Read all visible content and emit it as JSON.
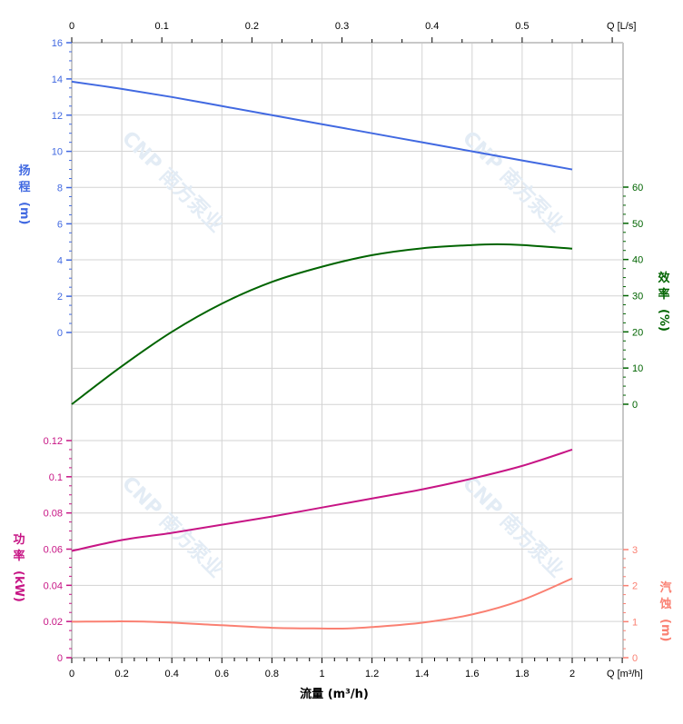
{
  "chart_data": {
    "type": "line",
    "title": "",
    "xlabel": "流量 (m³/h)",
    "x_unit_bottom": "Q [m³/h]",
    "x_unit_top": "Q [L/s]",
    "xlim": [
      0,
      2.206
    ],
    "x_ticks": [
      0,
      0.2,
      0.4,
      0.6,
      0.8,
      1,
      1.2,
      1.4,
      1.6,
      1.8,
      2
    ],
    "x_top_ticks": [
      0,
      0.1,
      0.2,
      0.3,
      0.4,
      0.5
    ],
    "grid": true,
    "axes": {
      "head": {
        "label": [
          "扬",
          "程",
          "(m)"
        ],
        "ticks": [
          0,
          2,
          4,
          6,
          8,
          10,
          12,
          14,
          16
        ],
        "color": "#4169e1"
      },
      "power": {
        "label": [
          "功",
          "率",
          "(kW)"
        ],
        "ticks": [
          0,
          0.02,
          0.04,
          0.06,
          0.08,
          0.1,
          0.12
        ],
        "color": "#c71585"
      },
      "efficiency": {
        "label": [
          "效",
          "率",
          "(%)"
        ],
        "ticks": [
          0,
          10,
          20,
          30,
          40,
          50,
          60
        ],
        "color": "#006400"
      },
      "npsh": {
        "label": [
          "汽",
          "蚀",
          "(m)"
        ],
        "ticks": [
          0,
          1,
          2,
          3
        ],
        "color": "#fa8072"
      }
    },
    "series": [
      {
        "axis": "head",
        "color": "#4169e1",
        "x": [
          0,
          0.2,
          0.4,
          0.6,
          0.8,
          1.0,
          1.2,
          1.4,
          1.6,
          1.8,
          2.0
        ],
        "y": [
          13.85,
          13.45,
          13.0,
          12.5,
          12.0,
          11.5,
          11.0,
          10.5,
          10.0,
          9.5,
          9.0
        ]
      },
      {
        "axis": "efficiency",
        "color": "#006400",
        "x": [
          0,
          0.2,
          0.4,
          0.6,
          0.8,
          1.0,
          1.2,
          1.4,
          1.6,
          1.7,
          1.8,
          2.0
        ],
        "y": [
          0,
          10.5,
          20,
          27.8,
          33.8,
          38,
          41.2,
          43.1,
          44,
          44.2,
          44,
          43
        ]
      },
      {
        "axis": "power",
        "color": "#c71585",
        "x": [
          0,
          0.2,
          0.4,
          0.6,
          0.8,
          1.0,
          1.2,
          1.4,
          1.6,
          1.8,
          2.0
        ],
        "y": [
          0.059,
          0.065,
          0.069,
          0.0735,
          0.078,
          0.083,
          0.088,
          0.093,
          0.099,
          0.106,
          0.115
        ]
      },
      {
        "axis": "npsh",
        "color": "#fa8072",
        "x": [
          0,
          0.3,
          0.6,
          0.8,
          1.0,
          1.1,
          1.2,
          1.4,
          1.6,
          1.8,
          2.0
        ],
        "y": [
          1.0,
          1.0,
          0.9,
          0.83,
          0.81,
          0.81,
          0.85,
          0.97,
          1.2,
          1.6,
          2.2
        ]
      }
    ],
    "watermark": "CNP 南方泵业"
  }
}
